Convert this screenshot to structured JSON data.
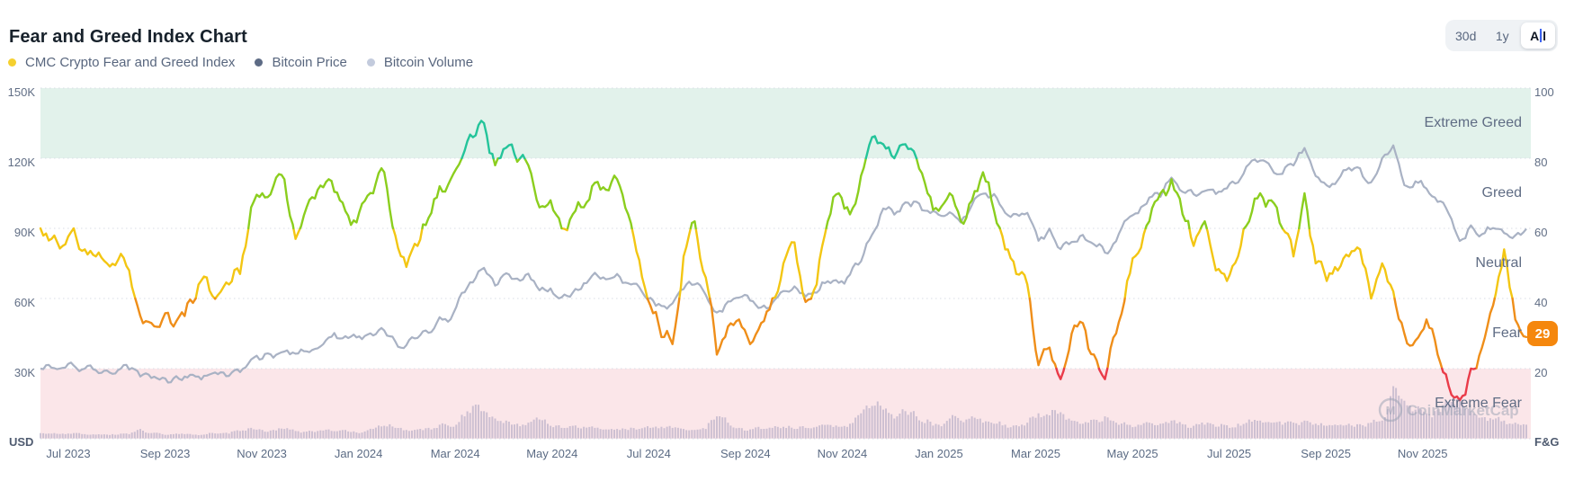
{
  "title": "Fear and Greed Index Chart",
  "legend": [
    {
      "label": "CMC Crypto Fear and Greed Index",
      "color": "#F5D02F"
    },
    {
      "label": "Bitcoin Price",
      "color": "#5D6B85"
    },
    {
      "label": "Bitcoin Volume",
      "color": "#C3CBDD"
    }
  ],
  "range_buttons": {
    "options": [
      "30d",
      "1y",
      "All"
    ],
    "active": "All"
  },
  "axes": {
    "left": {
      "unit_label": "USD",
      "ticks": [
        "150K",
        "120K",
        "90K",
        "60K",
        "30K"
      ],
      "tick_values": [
        150,
        120,
        90,
        60,
        30
      ]
    },
    "right": {
      "unit_label": "F&G",
      "ticks": [
        "100",
        "80",
        "60",
        "40",
        "20"
      ],
      "tick_values": [
        100,
        80,
        60,
        40,
        20
      ]
    },
    "x": {
      "ticks": [
        "Jul 2023",
        "Sep 2023",
        "Nov 2023",
        "Jan 2024",
        "Mar 2024",
        "May 2024",
        "Jul 2024",
        "Sep 2024",
        "Nov 2024",
        "Jan 2025",
        "Mar 2025",
        "May 2025",
        "Jul 2025",
        "Sep 2025",
        "Nov 2025"
      ]
    }
  },
  "zones": [
    {
      "label": "Extreme Greed",
      "range": [
        80,
        100
      ],
      "line_color": "#24C49A",
      "band_color": "#E2F2EB"
    },
    {
      "label": "Greed",
      "range": [
        60,
        80
      ],
      "line_color": "#8BCE1E"
    },
    {
      "label": "Neutral",
      "range": [
        40,
        60
      ],
      "line_color": "#F3C613"
    },
    {
      "label": "Fear",
      "range": [
        20,
        40
      ],
      "line_color": "#EF8E19"
    },
    {
      "label": "Extreme Fear",
      "range": [
        0,
        20
      ],
      "line_color": "#EA3B49",
      "band_color": "#FBE6E9"
    }
  ],
  "current_value": {
    "value": 29,
    "classification": "Fear",
    "badge_color": "#F5870D"
  },
  "watermark_text": "CoinMarketCap",
  "colors": {
    "grid": "#D8DDE6",
    "bitcoin_line": "#A9B2C4",
    "volume_bar": "rgba(167,160,191,0.55)",
    "watermark": "#98A1B3"
  },
  "chart_data": {
    "type": "line",
    "x_start": "Jun 2023",
    "x_end": "Dec 2025",
    "x_interval": "weekly",
    "left_axis_label": "USD",
    "right_axis_label": "F&G",
    "right_ylim": [
      0,
      100
    ],
    "left_ylim_usd": [
      0,
      150000
    ],
    "grid": "dotted horizontal",
    "legend_position": "top-left",
    "series": [
      {
        "name": "CMC Crypto Fear and Greed Index",
        "type": "line",
        "axis": "F&G",
        "color_mode": "by_zone",
        "values": [
          60,
          57,
          55,
          60,
          54,
          52,
          50,
          51,
          48,
          35,
          33,
          34,
          32,
          35,
          40,
          46,
          41,
          44,
          47,
          66,
          70,
          72,
          74,
          57,
          66,
          71,
          74,
          68,
          61,
          67,
          70,
          76,
          58,
          49,
          55,
          63,
          72,
          74,
          80,
          86,
          90,
          78,
          83,
          79,
          78,
          66,
          68,
          60,
          64,
          66,
          73,
          71,
          74,
          64,
          51,
          38,
          29,
          27,
          52,
          62,
          46,
          24,
          32,
          34,
          27,
          33,
          40,
          50,
          56,
          39,
          44,
          62,
          70,
          64,
          75,
          86,
          84,
          80,
          84,
          80,
          70,
          65,
          70,
          62,
          68,
          76,
          65,
          54,
          47,
          44,
          21,
          26,
          17,
          30,
          33,
          24,
          17,
          30,
          45,
          53,
          62,
          70,
          74,
          64,
          55,
          62,
          48,
          45,
          52,
          62,
          70,
          68,
          60,
          52,
          70,
          50,
          45,
          48,
          52,
          54,
          40,
          50,
          42,
          30,
          28,
          34,
          24,
          15,
          11,
          20,
          26,
          38,
          54,
          34,
          29
        ]
      },
      {
        "name": "Bitcoin Price",
        "type": "line",
        "axis": "USD",
        "unit": "thousand USD",
        "values": [
          30.0,
          30.4,
          30.3,
          31.3,
          30.0,
          29.3,
          29.2,
          29.4,
          29.6,
          26.6,
          26.0,
          26.1,
          25.8,
          26.6,
          26.6,
          27.0,
          27.6,
          26.9,
          28.5,
          33.9,
          34.2,
          34.7,
          37.3,
          36.4,
          37.4,
          38.7,
          43.3,
          42.9,
          43.7,
          42.6,
          44.2,
          46.3,
          41.6,
          40.0,
          43.1,
          45.3,
          52.0,
          51.1,
          62.4,
          66.9,
          73.1,
          65.5,
          70.8,
          68.5,
          70.6,
          63.5,
          64.3,
          60.5,
          62.5,
          66.5,
          71.0,
          68.2,
          70.5,
          66.5,
          64.9,
          60.3,
          56.8,
          57.9,
          64.0,
          66.0,
          61.5,
          54.0,
          58.7,
          60.4,
          59.1,
          56.2,
          58.1,
          63.2,
          65.2,
          60.8,
          62.5,
          67.4,
          66.7,
          70.2,
          75.9,
          87.3,
          98.5,
          95.9,
          101.1,
          101.4,
          97.5,
          95.8,
          96.9,
          92.5,
          100.0,
          104.8,
          104.7,
          96.6,
          96.1,
          96.6,
          84.7,
          89.9,
          81.1,
          84.2,
          87.2,
          83.2,
          79.6,
          84.5,
          93.9,
          96.5,
          103.2,
          103.5,
          111.7,
          105.6,
          104.6,
          106.0,
          104.7,
          107.1,
          109.6,
          117.5,
          119.0,
          115.8,
          113.3,
          116.9,
          124.4,
          112.4,
          108.4,
          110.6,
          115.9,
          115.7,
          109.7,
          120.0,
          125.5,
          108.5,
          110.1,
          107.0,
          101.3,
          96.3,
          84.6,
          91.3,
          87.5,
          90.1,
          88.0,
          87.0,
          89.8
        ]
      },
      {
        "name": "Bitcoin Volume",
        "type": "bar",
        "axis": "relative 0-100 (unlabeled)",
        "values": [
          10,
          9,
          9,
          10,
          8,
          7,
          7,
          7,
          8,
          18,
          10,
          8,
          8,
          8,
          7,
          8,
          9,
          9,
          14,
          20,
          16,
          16,
          18,
          14,
          13,
          14,
          17,
          15,
          12,
          11,
          18,
          24,
          20,
          16,
          17,
          20,
          26,
          22,
          45,
          62,
          52,
          38,
          34,
          28,
          30,
          36,
          24,
          20,
          24,
          22,
          20,
          17,
          18,
          16,
          18,
          20,
          22,
          20,
          18,
          16,
          18,
          42,
          30,
          20,
          17,
          18,
          20,
          22,
          18,
          20,
          22,
          26,
          22,
          28,
          48,
          62,
          55,
          38,
          52,
          42,
          36,
          26,
          38,
          34,
          42,
          30,
          28,
          26,
          25,
          30,
          48,
          44,
          50,
          34,
          28,
          36,
          42,
          30,
          26,
          26,
          30,
          28,
          34,
          27,
          24,
          26,
          22,
          25,
          28,
          36,
          34,
          30,
          26,
          30,
          34,
          28,
          24,
          25,
          28,
          27,
          30,
          34,
          100,
          72,
          55,
          48,
          55,
          70,
          78,
          52,
          40,
          36,
          34,
          30,
          26
        ]
      }
    ]
  }
}
